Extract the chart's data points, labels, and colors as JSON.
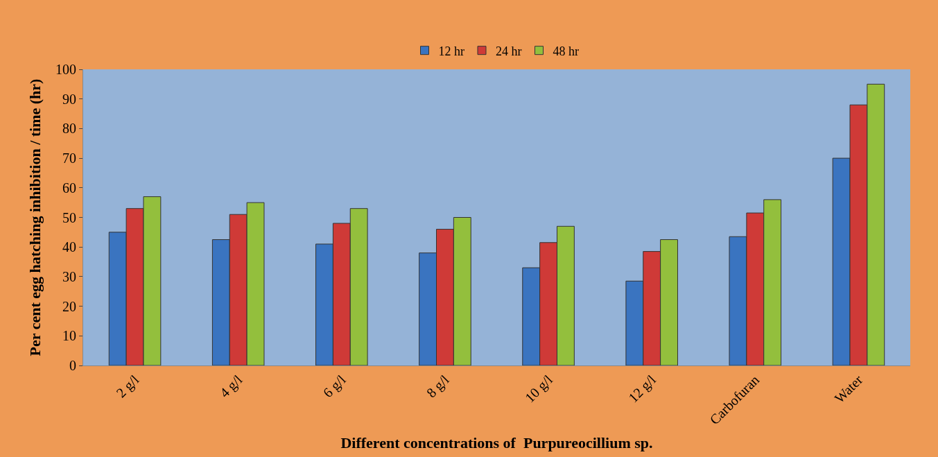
{
  "chart_data": {
    "type": "bar",
    "xlabel": "Different concentrations of  Purpureocillium sp.",
    "ylabel": "Per cent egg hatching inhibition / time (hr)",
    "categories": [
      "2 g/l",
      "4 g/l",
      "6 g/l",
      "8 g/l",
      "10 g/l",
      "12 g/l",
      "Carbofuran",
      "Water"
    ],
    "series": [
      {
        "name": "12 hr",
        "color": "#3a74c0",
        "values": [
          45,
          42.5,
          41,
          38,
          33,
          28.5,
          43.5,
          70
        ]
      },
      {
        "name": "24 hr",
        "color": "#cf3a37",
        "values": [
          53,
          51,
          48,
          46,
          41.5,
          38.5,
          51.5,
          88
        ]
      },
      {
        "name": "48 hr",
        "color": "#93bf3d",
        "values": [
          57,
          55,
          53,
          50,
          47,
          42.5,
          56,
          95
        ]
      }
    ],
    "ylim": [
      0,
      100
    ],
    "yticks": [
      0,
      10,
      20,
      30,
      40,
      50,
      60,
      70,
      80,
      90,
      100
    ],
    "grid": false,
    "legend": "top"
  }
}
